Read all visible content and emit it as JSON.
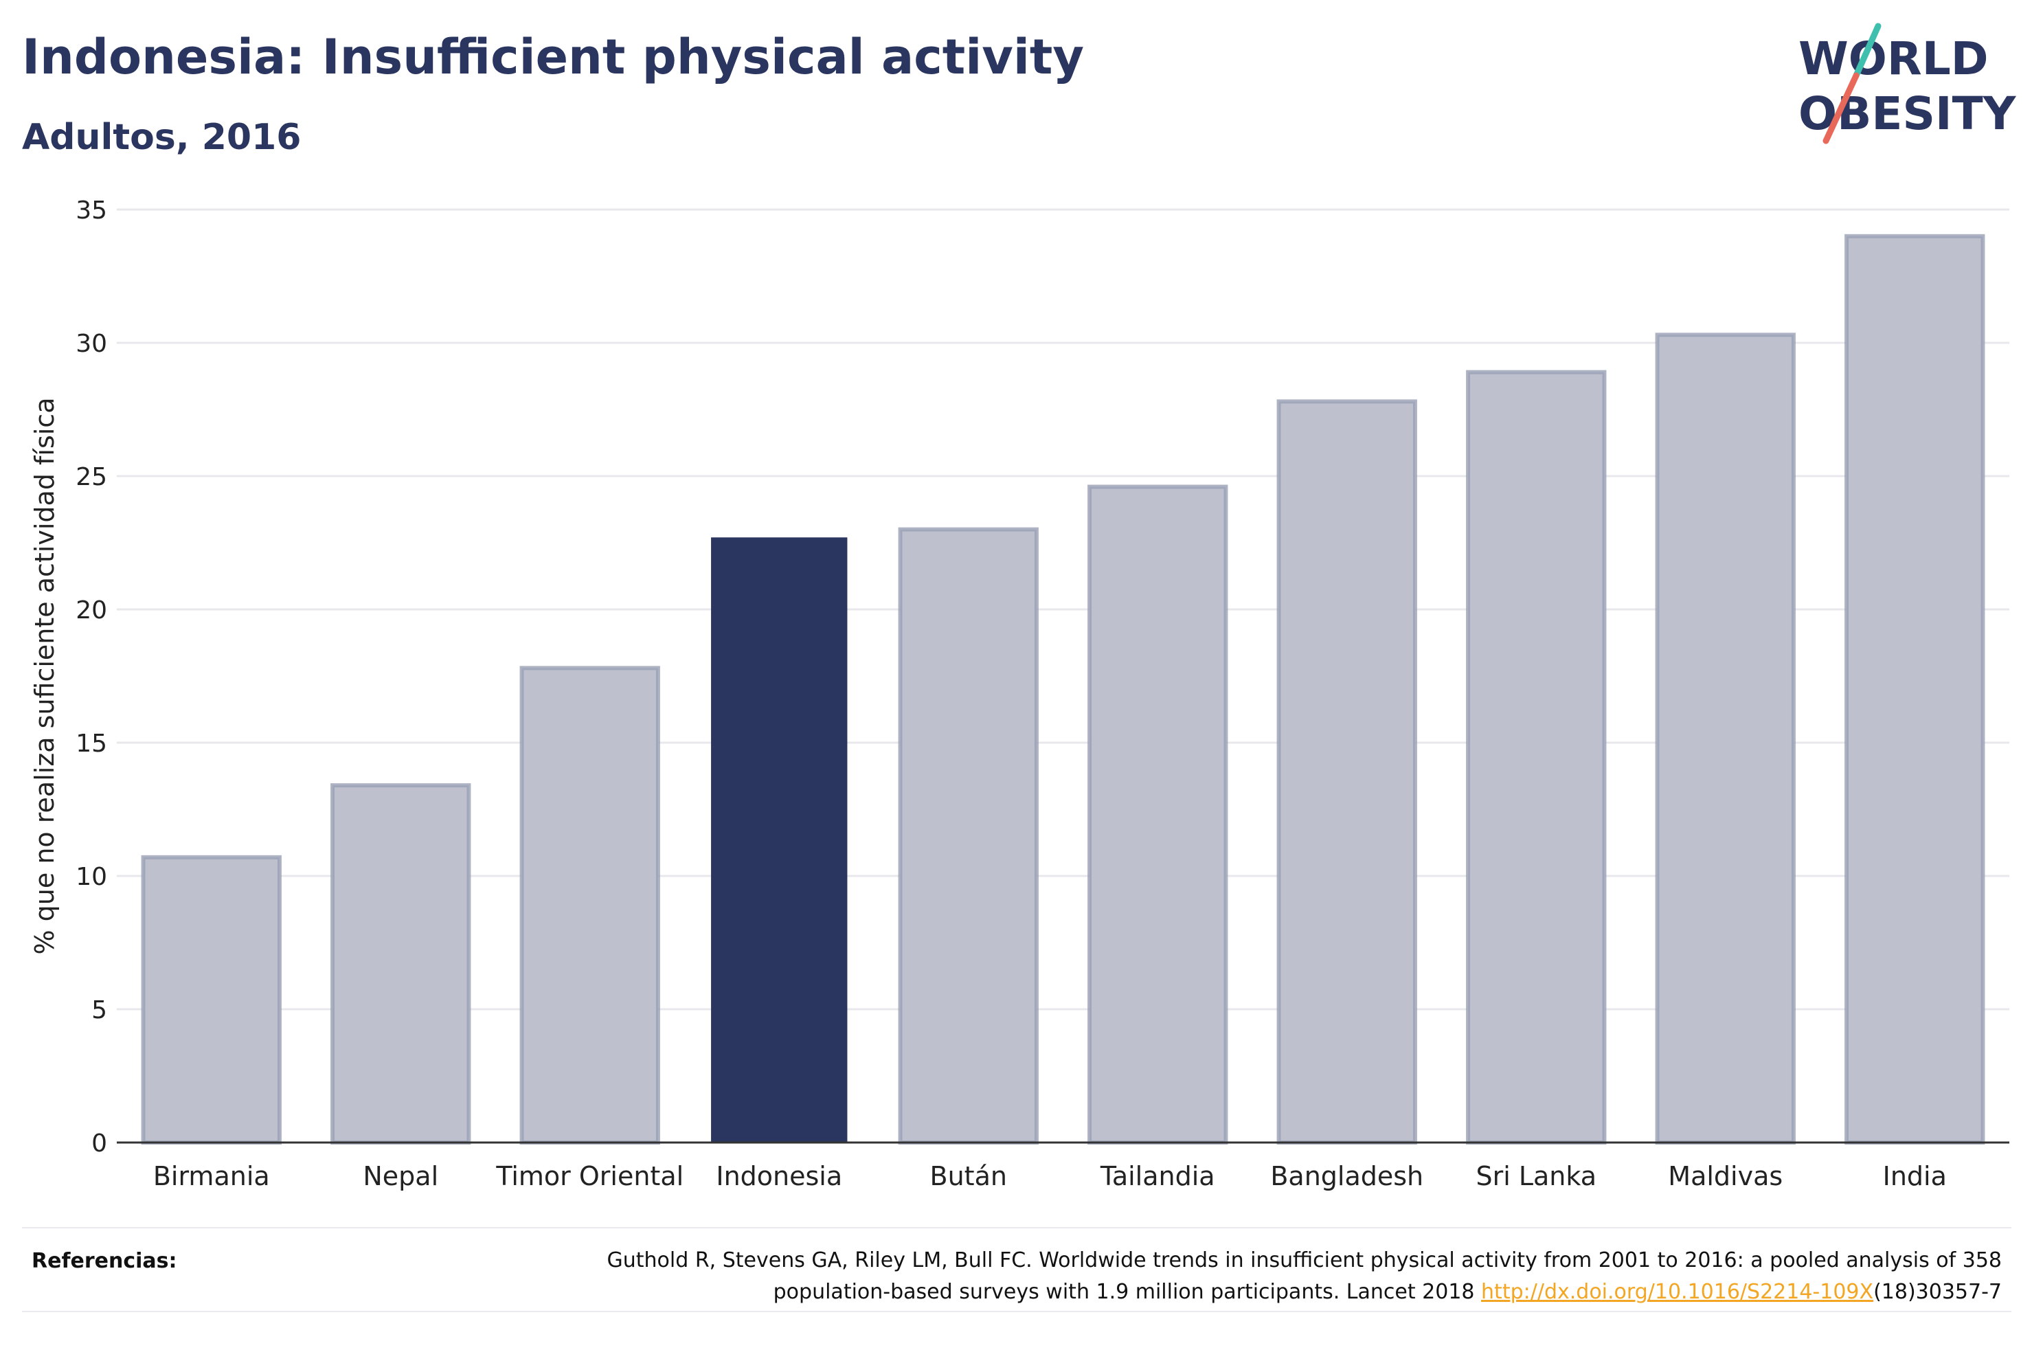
{
  "header": {
    "title": "Indonesia: Insufficient physical activity",
    "subtitle": "Adultos, 2016"
  },
  "logo": {
    "line1": "WORLD",
    "line2": "OBESITY",
    "accent_colors": [
      "#3fbfae",
      "#e8685a"
    ]
  },
  "chart_data": {
    "type": "bar",
    "categories": [
      "Birmania",
      "Nepal",
      "Timor Oriental",
      "Indonesia",
      "Bután",
      "Tailandia",
      "Bangladesh",
      "Sri Lanka",
      "Maldivas",
      "India"
    ],
    "values": [
      10.7,
      13.4,
      17.8,
      22.7,
      23.0,
      24.6,
      27.8,
      28.9,
      30.3,
      34.0
    ],
    "highlight": "Indonesia",
    "title": "Indonesia: Insufficient physical activity",
    "subtitle": "Adultos, 2016",
    "xlabel": "",
    "ylabel": "% que no realiza suficiente actividad física",
    "ylim": [
      0,
      35
    ],
    "yticks": [
      0,
      5,
      10,
      15,
      20,
      25,
      30,
      35
    ],
    "grid": true,
    "colors": {
      "default": "#bec1cd",
      "default_border": "#9aa0b5",
      "highlight": "#2a3560"
    }
  },
  "references": {
    "label": "Referencias:",
    "text_line1": "Guthold R, Stevens GA, Riley LM, Bull FC. Worldwide trends in insufficient physical activity from 2001 to 2016: a pooled analysis of 358",
    "text_line2_pre": "population-based surveys with 1.9 million participants. Lancet 2018 ",
    "link": "http://dx.doi.org/10.1016/S2214-109X",
    "text_line2_post": "(18)30357-7"
  }
}
